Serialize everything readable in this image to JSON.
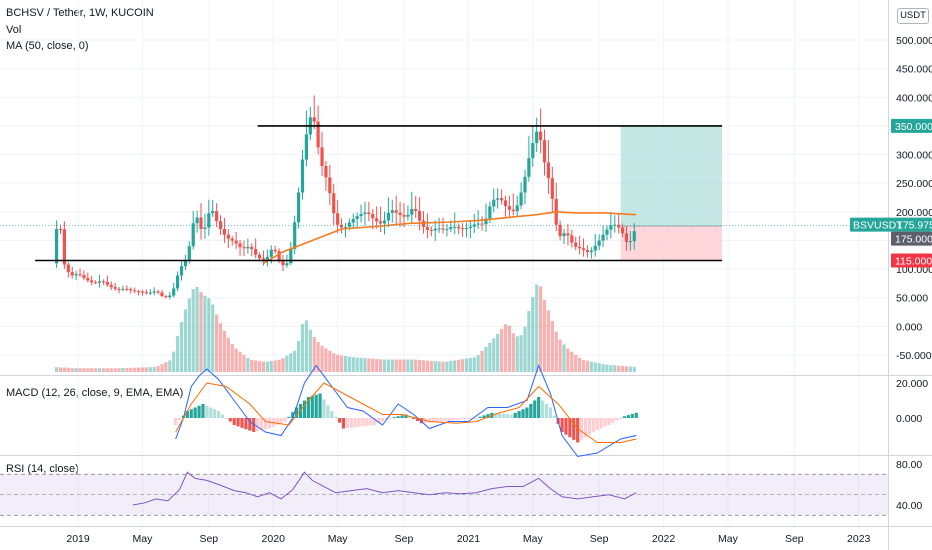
{
  "header": {
    "title": "BCHSV / Tether, 1W, KUCOIN",
    "vol_label": "Vol",
    "ma_label": "MA (50, close, 0)",
    "macd_label": "MACD (12, 26, close, 9, EMA, EMA)",
    "rsi_label": "RSI (14, close)",
    "currency": "USDT"
  },
  "colors": {
    "up": "#26a69a",
    "down": "#ef5350",
    "ma": "#f57c1f",
    "macd_line": "#2962ff",
    "signal_line": "#ff6d00",
    "rsi_line": "#7e57c2",
    "target_zone": "#b2dfdb",
    "stop_zone": "#ffcdd2"
  },
  "chart_data": [
    {
      "type": "candlestick",
      "title": "BCHSV / Tether, 1W, KUCOIN",
      "x_tick_labels": [
        "2019",
        "May",
        "Sep",
        "2020",
        "May",
        "Sep",
        "2021",
        "May",
        "Sep",
        "2022",
        "May",
        "Sep",
        "2023"
      ],
      "y_tick_labels": [
        "500.000",
        "450.000",
        "400.000",
        "350.000",
        "300.000",
        "250.000",
        "200.000",
        "150.000",
        "100.000",
        "50.000",
        "0.000",
        "-50.000"
      ],
      "ylim": [
        -50,
        500
      ],
      "price_tags": [
        {
          "label": "BSVUSDT",
          "value": "175.975",
          "color": "#26a69a"
        },
        {
          "label": "",
          "value": "350.000",
          "color": "#26a69a"
        },
        {
          "label": "",
          "value": "175.000",
          "color": "#5d606b"
        },
        {
          "label": "",
          "value": "115.000",
          "color": "#f23645"
        }
      ],
      "horizontal_levels": [
        350,
        115
      ],
      "position": {
        "entry": 175,
        "target": 350,
        "stop": 115,
        "x_start": "2021-09",
        "x_end": "2022-04"
      },
      "close_path": [
        [
          2018.87,
          110
        ],
        [
          2018.9,
          200
        ],
        [
          2018.93,
          108
        ],
        [
          2018.96,
          88
        ],
        [
          2019.0,
          92
        ],
        [
          2019.04,
          82
        ],
        [
          2019.08,
          75
        ],
        [
          2019.12,
          80
        ],
        [
          2019.16,
          70
        ],
        [
          2019.2,
          64
        ],
        [
          2019.24,
          66
        ],
        [
          2019.28,
          62
        ],
        [
          2019.32,
          60
        ],
        [
          2019.36,
          58
        ],
        [
          2019.4,
          62
        ],
        [
          2019.44,
          50
        ],
        [
          2019.48,
          55
        ],
        [
          2019.52,
          100
        ],
        [
          2019.56,
          120
        ],
        [
          2019.6,
          200
        ],
        [
          2019.64,
          160
        ],
        [
          2019.68,
          210
        ],
        [
          2019.72,
          175
        ],
        [
          2019.76,
          155
        ],
        [
          2019.8,
          148
        ],
        [
          2019.84,
          135
        ],
        [
          2019.88,
          140
        ],
        [
          2019.92,
          120
        ],
        [
          2019.96,
          115
        ],
        [
          2020.0,
          140
        ],
        [
          2020.04,
          105
        ],
        [
          2020.08,
          112
        ],
        [
          2020.12,
          205
        ],
        [
          2020.16,
          320
        ],
        [
          2020.2,
          380
        ],
        [
          2020.24,
          290
        ],
        [
          2020.28,
          250
        ],
        [
          2020.32,
          180
        ],
        [
          2020.36,
          170
        ],
        [
          2020.4,
          185
        ],
        [
          2020.44,
          195
        ],
        [
          2020.48,
          200
        ],
        [
          2020.52,
          185
        ],
        [
          2020.56,
          178
        ],
        [
          2020.6,
          205
        ],
        [
          2020.64,
          196
        ],
        [
          2020.68,
          190
        ],
        [
          2020.72,
          210
        ],
        [
          2020.76,
          176
        ],
        [
          2020.8,
          166
        ],
        [
          2020.84,
          172
        ],
        [
          2020.88,
          168
        ],
        [
          2020.92,
          175
        ],
        [
          2020.96,
          170
        ],
        [
          2021.0,
          172
        ],
        [
          2021.04,
          180
        ],
        [
          2021.08,
          178
        ],
        [
          2021.12,
          220
        ],
        [
          2021.16,
          225
        ],
        [
          2021.2,
          205
        ],
        [
          2021.24,
          200
        ],
        [
          2021.28,
          245
        ],
        [
          2021.32,
          310
        ],
        [
          2021.36,
          350
        ],
        [
          2021.38,
          300
        ],
        [
          2021.42,
          245
        ],
        [
          2021.46,
          155
        ],
        [
          2021.5,
          165
        ],
        [
          2021.54,
          140
        ],
        [
          2021.58,
          135
        ],
        [
          2021.62,
          128
        ],
        [
          2021.66,
          145
        ],
        [
          2021.7,
          165
        ],
        [
          2021.74,
          180
        ],
        [
          2021.78,
          170
        ],
        [
          2021.82,
          140
        ],
        [
          2021.86,
          175
        ]
      ],
      "ma_path": [
        [
          2019.95,
          110
        ],
        [
          2020.05,
          130
        ],
        [
          2020.2,
          150
        ],
        [
          2020.35,
          170
        ],
        [
          2020.55,
          175
        ],
        [
          2020.7,
          180
        ],
        [
          2020.9,
          182
        ],
        [
          2021.05,
          185
        ],
        [
          2021.2,
          190
        ],
        [
          2021.35,
          195
        ],
        [
          2021.45,
          200
        ],
        [
          2021.55,
          198
        ],
        [
          2021.7,
          198
        ],
        [
          2021.86,
          195
        ]
      ],
      "volume_path": [
        [
          2018.87,
          4
        ],
        [
          2019.0,
          3
        ],
        [
          2019.2,
          3
        ],
        [
          2019.4,
          4
        ],
        [
          2019.48,
          10
        ],
        [
          2019.52,
          35
        ],
        [
          2019.56,
          55
        ],
        [
          2019.6,
          70
        ],
        [
          2019.64,
          62
        ],
        [
          2019.68,
          58
        ],
        [
          2019.72,
          42
        ],
        [
          2019.76,
          30
        ],
        [
          2019.8,
          20
        ],
        [
          2019.88,
          10
        ],
        [
          2019.96,
          8
        ],
        [
          2020.04,
          10
        ],
        [
          2020.12,
          18
        ],
        [
          2020.16,
          45
        ],
        [
          2020.2,
          30
        ],
        [
          2020.24,
          22
        ],
        [
          2020.32,
          14
        ],
        [
          2020.4,
          12
        ],
        [
          2020.56,
          10
        ],
        [
          2020.72,
          10
        ],
        [
          2020.88,
          8
        ],
        [
          2021.04,
          12
        ],
        [
          2021.12,
          25
        ],
        [
          2021.2,
          40
        ],
        [
          2021.24,
          28
        ],
        [
          2021.28,
          30
        ],
        [
          2021.32,
          55
        ],
        [
          2021.36,
          75
        ],
        [
          2021.38,
          62
        ],
        [
          2021.42,
          45
        ],
        [
          2021.46,
          28
        ],
        [
          2021.5,
          20
        ],
        [
          2021.58,
          10
        ],
        [
          2021.7,
          6
        ],
        [
          2021.86,
          4
        ]
      ]
    },
    {
      "type": "line",
      "title": "MACD (12, 26, close, 9, EMA, EMA)",
      "y_tick_labels": [
        "20.000",
        "0.000"
      ],
      "ylim": [
        -25,
        30
      ],
      "series": [
        {
          "name": "MACD",
          "points": [
            [
              2019.5,
              -12
            ],
            [
              2019.54,
              0
            ],
            [
              2019.58,
              18
            ],
            [
              2019.62,
              24
            ],
            [
              2019.66,
              28
            ],
            [
              2019.72,
              22
            ],
            [
              2019.8,
              10
            ],
            [
              2019.88,
              -2
            ],
            [
              2019.96,
              -8
            ],
            [
              2020.04,
              -10
            ],
            [
              2020.1,
              0
            ],
            [
              2020.16,
              20
            ],
            [
              2020.22,
              30
            ],
            [
              2020.3,
              18
            ],
            [
              2020.38,
              6
            ],
            [
              2020.46,
              4
            ],
            [
              2020.56,
              -4
            ],
            [
              2020.64,
              8
            ],
            [
              2020.72,
              2
            ],
            [
              2020.8,
              -6
            ],
            [
              2020.9,
              -2
            ],
            [
              2021.0,
              -2
            ],
            [
              2021.1,
              6
            ],
            [
              2021.2,
              6
            ],
            [
              2021.3,
              10
            ],
            [
              2021.36,
              30
            ],
            [
              2021.42,
              14
            ],
            [
              2021.48,
              -10
            ],
            [
              2021.56,
              -22
            ],
            [
              2021.66,
              -20
            ],
            [
              2021.78,
              -12
            ],
            [
              2021.86,
              -10
            ]
          ]
        },
        {
          "name": "Signal",
          "points": [
            [
              2019.5,
              -8
            ],
            [
              2019.58,
              8
            ],
            [
              2019.66,
              20
            ],
            [
              2019.76,
              18
            ],
            [
              2019.88,
              8
            ],
            [
              2019.96,
              -2
            ],
            [
              2020.08,
              -4
            ],
            [
              2020.18,
              10
            ],
            [
              2020.26,
              20
            ],
            [
              2020.36,
              14
            ],
            [
              2020.46,
              8
            ],
            [
              2020.56,
              2
            ],
            [
              2020.66,
              2
            ],
            [
              2020.8,
              -2
            ],
            [
              2020.94,
              -3
            ],
            [
              2021.04,
              -2
            ],
            [
              2021.16,
              3
            ],
            [
              2021.26,
              6
            ],
            [
              2021.36,
              18
            ],
            [
              2021.46,
              8
            ],
            [
              2021.56,
              -6
            ],
            [
              2021.66,
              -14
            ],
            [
              2021.78,
              -14
            ],
            [
              2021.86,
              -12
            ]
          ]
        }
      ],
      "histogram_path": [
        [
          2019.5,
          -4
        ],
        [
          2019.56,
          4
        ],
        [
          2019.64,
          8
        ],
        [
          2019.72,
          4
        ],
        [
          2019.8,
          -4
        ],
        [
          2019.9,
          -8
        ],
        [
          2019.98,
          -6
        ],
        [
          2020.06,
          -2
        ],
        [
          2020.12,
          6
        ],
        [
          2020.18,
          12
        ],
        [
          2020.24,
          14
        ],
        [
          2020.3,
          4
        ],
        [
          2020.36,
          -6
        ],
        [
          2020.44,
          -5
        ],
        [
          2020.52,
          -4
        ],
        [
          2020.6,
          0
        ],
        [
          2020.68,
          2
        ],
        [
          2020.76,
          -3
        ],
        [
          2020.86,
          -2
        ],
        [
          2020.96,
          -1
        ],
        [
          2021.04,
          0
        ],
        [
          2021.12,
          3
        ],
        [
          2021.22,
          2
        ],
        [
          2021.3,
          6
        ],
        [
          2021.36,
          12
        ],
        [
          2021.42,
          6
        ],
        [
          2021.48,
          -8
        ],
        [
          2021.56,
          -14
        ],
        [
          2021.64,
          -8
        ],
        [
          2021.72,
          -4
        ],
        [
          2021.8,
          1
        ],
        [
          2021.86,
          3
        ]
      ]
    },
    {
      "type": "line",
      "title": "RSI (14, close)",
      "y_tick_labels": [
        "80.00",
        "40.00"
      ],
      "ylim": [
        30,
        85
      ],
      "bands": [
        70,
        30
      ],
      "series": [
        {
          "name": "RSI",
          "points": [
            [
              2019.28,
              40
            ],
            [
              2019.34,
              42
            ],
            [
              2019.4,
              46
            ],
            [
              2019.46,
              44
            ],
            [
              2019.52,
              55
            ],
            [
              2019.56,
              72
            ],
            [
              2019.6,
              66
            ],
            [
              2019.66,
              64
            ],
            [
              2019.72,
              60
            ],
            [
              2019.8,
              54
            ],
            [
              2019.86,
              52
            ],
            [
              2019.92,
              48
            ],
            [
              2019.98,
              52
            ],
            [
              2020.04,
              46
            ],
            [
              2020.1,
              55
            ],
            [
              2020.16,
              72
            ],
            [
              2020.2,
              64
            ],
            [
              2020.26,
              58
            ],
            [
              2020.32,
              52
            ],
            [
              2020.4,
              54
            ],
            [
              2020.48,
              56
            ],
            [
              2020.56,
              52
            ],
            [
              2020.64,
              54
            ],
            [
              2020.72,
              52
            ],
            [
              2020.8,
              50
            ],
            [
              2020.88,
              52
            ],
            [
              2020.96,
              51
            ],
            [
              2021.04,
              52
            ],
            [
              2021.12,
              56
            ],
            [
              2021.2,
              58
            ],
            [
              2021.28,
              58
            ],
            [
              2021.36,
              66
            ],
            [
              2021.42,
              56
            ],
            [
              2021.48,
              48
            ],
            [
              2021.56,
              46
            ],
            [
              2021.64,
              48
            ],
            [
              2021.72,
              50
            ],
            [
              2021.8,
              46
            ],
            [
              2021.86,
              52
            ]
          ]
        }
      ]
    }
  ]
}
